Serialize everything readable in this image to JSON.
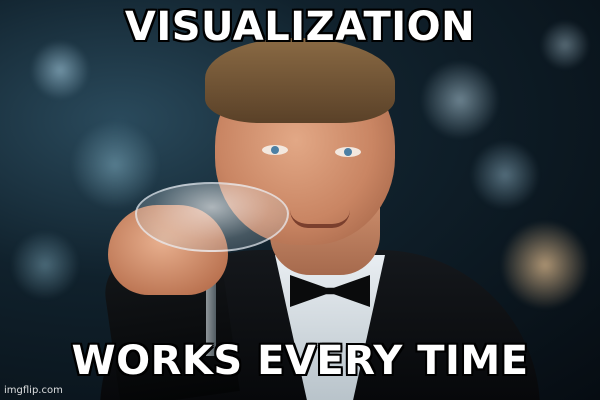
{
  "meme": {
    "top_text": "VISUALIZATION",
    "bottom_text": "WORKS EVERY TIME",
    "watermark": "imgflip.com"
  },
  "colors": {
    "text": "#ffffff",
    "text_outline": "#000000"
  }
}
